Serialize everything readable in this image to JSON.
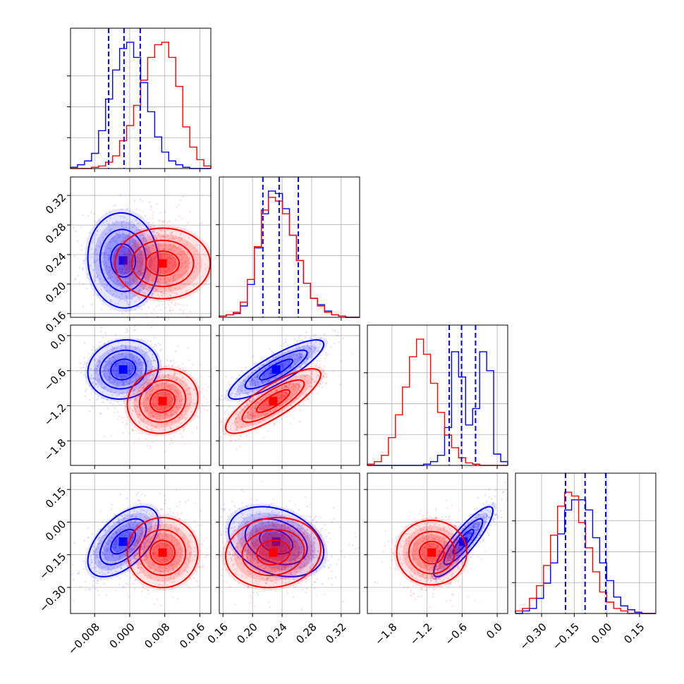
{
  "chart_data": {
    "type": "corner",
    "grid": true,
    "colors": {
      "blue": "#0000ff",
      "red": "#ff0000"
    },
    "parameters": [
      {
        "index": 0,
        "range": [
          -0.0135,
          0.0185
        ],
        "ticks": [
          -0.008,
          0.0,
          0.008,
          0.016
        ],
        "tick_labels": [
          "−0.008",
          "0.000",
          "0.008",
          "0.016"
        ]
      },
      {
        "index": 1,
        "range": [
          0.155,
          0.345
        ],
        "ticks": [
          0.16,
          0.2,
          0.24,
          0.28,
          0.32
        ],
        "tick_labels": [
          "0.16",
          "0.20",
          "0.24",
          "0.28",
          "0.32"
        ]
      },
      {
        "index": 2,
        "range": [
          -2.22,
          0.18
        ],
        "ticks": [
          -1.8,
          -1.2,
          -0.6,
          0.0
        ],
        "tick_labels": [
          "−1.8",
          "−1.2",
          "−0.6",
          "0.0"
        ]
      },
      {
        "index": 3,
        "range": [
          -0.42,
          0.225
        ],
        "ticks": [
          -0.3,
          -0.15,
          0.0,
          0.15
        ],
        "tick_labels": [
          "−0.30",
          "−0.15",
          "0.00",
          "0.15"
        ]
      }
    ],
    "series": [
      {
        "color": "blue",
        "mean": [
          -0.0015,
          0.232,
          -0.58,
          -0.09
        ],
        "sd": [
          0.0035,
          0.028,
          0.22,
          0.07
        ],
        "quantiles": [
          [
            -0.0048,
            -0.0013,
            0.0024
          ],
          [
            0.214,
            0.236,
            0.262
          ],
          [
            -0.82,
            -0.61,
            -0.37
          ],
          [
            -0.19,
            -0.1,
            -0.005
          ]
        ]
      },
      {
        "color": "red",
        "mean": [
          0.0075,
          0.228,
          -1.12,
          -0.14
        ],
        "sd": [
          0.0035,
          0.028,
          0.24,
          0.07
        ]
      }
    ],
    "marginals": [
      {
        "bins_x": [
          -0.0135,
          0.0185
        ],
        "blue": [
          0.01,
          0.03,
          0.06,
          0.12,
          0.3,
          0.55,
          0.78,
          0.95,
          1.0,
          0.88,
          0.68,
          0.45,
          0.25,
          0.13,
          0.06,
          0.03,
          0.01,
          0.0,
          0.0,
          0.0
        ],
        "red": [
          0.0,
          0.0,
          0.0,
          0.01,
          0.02,
          0.05,
          0.1,
          0.22,
          0.34,
          0.5,
          0.7,
          0.88,
          0.98,
          1.0,
          0.88,
          0.65,
          0.33,
          0.17,
          0.07,
          0.02
        ]
      },
      {
        "bins_x": [
          0.155,
          0.345
        ],
        "blue": [
          0.01,
          0.02,
          0.03,
          0.09,
          0.26,
          0.55,
          0.82,
          1.0,
          0.98,
          0.86,
          0.65,
          0.45,
          0.27,
          0.15,
          0.1,
          0.05,
          0.02,
          0.01,
          0.0,
          0.0
        ],
        "red": [
          0.01,
          0.02,
          0.04,
          0.12,
          0.3,
          0.56,
          0.85,
          0.95,
          0.92,
          0.82,
          0.65,
          0.45,
          0.27,
          0.15,
          0.09,
          0.04,
          0.02,
          0.01,
          0.0,
          0.0
        ]
      },
      {
        "bins_x": [
          -2.22,
          0.18
        ],
        "blue": [
          0.0,
          0.0,
          0.0,
          0.0,
          0.0,
          0.0,
          0.0,
          0.0,
          0.01,
          0.03,
          0.08,
          0.3,
          0.9,
          0.7,
          0.32,
          0.45,
          0.9,
          0.75,
          0.09,
          0.03
        ],
        "red": [
          0.01,
          0.03,
          0.08,
          0.22,
          0.4,
          0.62,
          0.86,
          1.0,
          0.88,
          0.65,
          0.42,
          0.24,
          0.14,
          0.06,
          0.02,
          0.01,
          0.0,
          0.0,
          0.0,
          0.0
        ]
      },
      {
        "bins_x": [
          -0.42,
          0.225
        ],
        "blue": [
          0.0,
          0.02,
          0.04,
          0.12,
          0.24,
          0.4,
          0.63,
          0.82,
          0.9,
          0.9,
          0.82,
          0.6,
          0.4,
          0.26,
          0.13,
          0.06,
          0.03,
          0.01,
          0.0,
          0.0
        ],
        "red": [
          0.02,
          0.04,
          0.12,
          0.22,
          0.38,
          0.62,
          0.85,
          0.96,
          0.93,
          0.72,
          0.52,
          0.33,
          0.17,
          0.09,
          0.04,
          0.02,
          0.0,
          0.0,
          0.0,
          0.0
        ]
      }
    ],
    "pairs": [
      {
        "x": 0,
        "y": 1,
        "rho_blue": -0.05,
        "rho_red": 0.0
      },
      {
        "x": 0,
        "y": 2,
        "rho_blue": 0.1,
        "rho_red": 0.1
      },
      {
        "x": 1,
        "y": 2,
        "rho_blue": 0.85,
        "rho_red": 0.82
      },
      {
        "x": 0,
        "y": 3,
        "rho_blue": 0.55,
        "rho_red": 0.0
      },
      {
        "x": 1,
        "y": 3,
        "rho_blue": -0.3,
        "rho_red": 0.1
      },
      {
        "x": 2,
        "y": 3,
        "rho_blue": 0.88,
        "rho_red": 0.0
      }
    ]
  }
}
